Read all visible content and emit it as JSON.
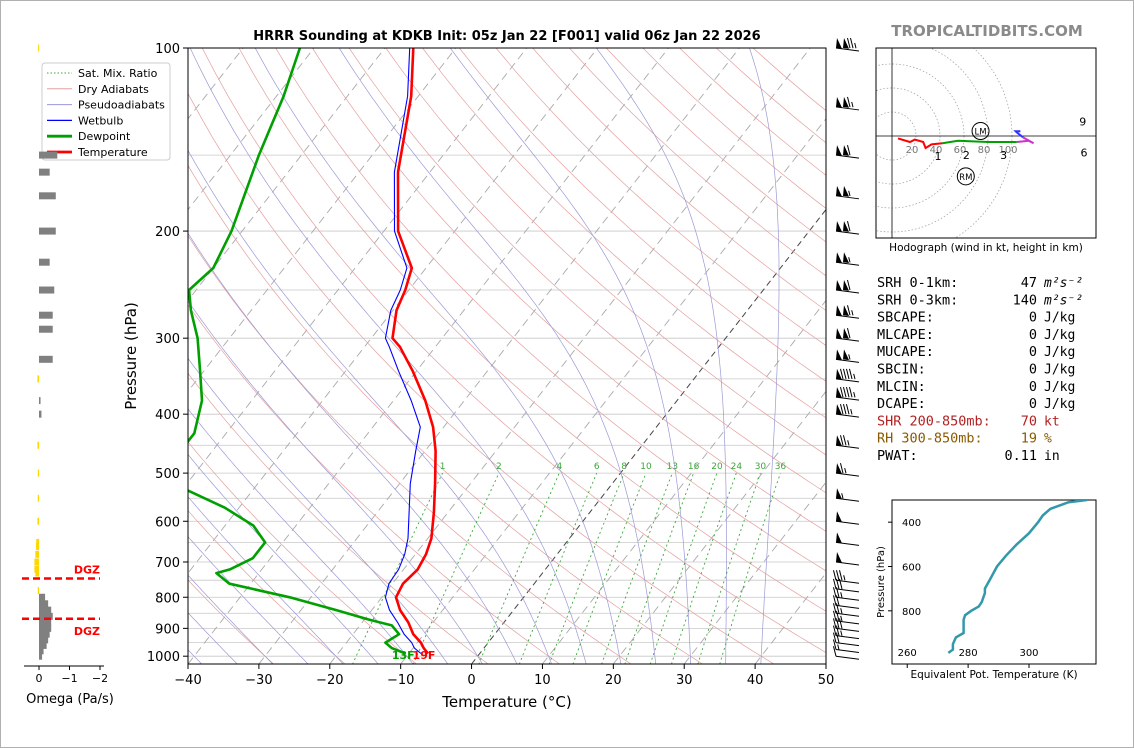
{
  "title": "HRRR Sounding at KDKB Init: 05z Jan 22 [F001] valid 06z Jan 22 2026",
  "brand": "TROPICALTIDBITS.COM",
  "chart_data": [
    {
      "type": "line",
      "name": "skew-t",
      "xlabel": "Temperature (°C)",
      "ylabel": "Pressure (hPa)",
      "xlim": [
        -40,
        50
      ],
      "ylim": [
        1030,
        100
      ],
      "y_scale": "log",
      "skew": "isotherms slanted to the right",
      "x_ticks": [
        -40,
        -30,
        -20,
        -10,
        0,
        10,
        20,
        30,
        40,
        50
      ],
      "y_ticks": [
        100,
        200,
        300,
        400,
        500,
        600,
        700,
        800,
        900,
        1000
      ],
      "legend_position": "top-left",
      "legend": [
        "Sat. Mix. Ratio",
        "Dry Adiabats",
        "Pseudoadiabats",
        "Wetbulb",
        "Dewpoint",
        "Temperature"
      ],
      "mixing_ratio_labels": [
        "1",
        "2",
        "4",
        "6",
        "8",
        "10",
        "13",
        "16",
        "20",
        "24",
        "30",
        "36"
      ],
      "mixing_ratio_values": [
        1,
        2,
        4,
        6,
        8,
        10,
        13,
        16,
        20,
        24,
        30,
        36
      ],
      "series": [
        {
          "name": "Temperature",
          "color": "#ff0000",
          "p": [
            990,
            970,
            950,
            920,
            880,
            840,
            800,
            760,
            720,
            680,
            640,
            580,
            520,
            460,
            420,
            380,
            340,
            310,
            300,
            270,
            250,
            230,
            200,
            160,
            120,
            100
          ],
          "t": [
            -7.3,
            -8.5,
            -9.5,
            -11.5,
            -13.5,
            -16.0,
            -18.0,
            -18.5,
            -18.0,
            -18.5,
            -19.5,
            -22.0,
            -25.0,
            -28.5,
            -31.5,
            -35.5,
            -40.5,
            -45.0,
            -47.0,
            -49.5,
            -50.5,
            -52.0,
            -58.0,
            -64.5,
            -71.0,
            -76.0
          ]
        },
        {
          "name": "Dewpoint",
          "color": "#00a000",
          "p": [
            990,
            970,
            950,
            920,
            890,
            870,
            840,
            800,
            760,
            730,
            720,
            690,
            650,
            610,
            570,
            520,
            500,
            460,
            430,
            380,
            340,
            300,
            270,
            250,
            230,
            200,
            150,
            120,
            100
          ],
          "t": [
            -10.5,
            -13.0,
            -14.5,
            -13.5,
            -15.5,
            -19.5,
            -25.0,
            -33.0,
            -43.0,
            -46.0,
            -44.5,
            -42.5,
            -42.5,
            -46.0,
            -52.0,
            -62.0,
            -63.5,
            -64.5,
            -64.5,
            -67.0,
            -70.5,
            -74.5,
            -78.5,
            -81.0,
            -80.0,
            -81.5,
            -86.0,
            -89.0,
            -92.0
          ]
        },
        {
          "name": "Wetbulb",
          "color": "#0000ff",
          "p": [
            990,
            970,
            950,
            920,
            880,
            840,
            800,
            760,
            720,
            680,
            640,
            580,
            520,
            460,
            420,
            380,
            340,
            310,
            300,
            270,
            250,
            230,
            200,
            160,
            120,
            100
          ],
          "t": [
            -8.3,
            -9.8,
            -10.8,
            -12.8,
            -15.0,
            -17.5,
            -19.5,
            -20.5,
            -20.7,
            -21.5,
            -22.8,
            -25.5,
            -28.5,
            -31.3,
            -33.3,
            -37.5,
            -42.5,
            -46.5,
            -48.0,
            -50.3,
            -51.2,
            -52.7,
            -58.5,
            -65.0,
            -71.5,
            -76.5
          ]
        }
      ],
      "surface_labels": [
        {
          "text": "13F",
          "color": "#00a000"
        },
        {
          "text": "19F",
          "color": "#ff0000"
        }
      ],
      "wind_barb_levels_hpa": [
        100,
        125,
        150,
        175,
        200,
        225,
        250,
        275,
        300,
        325,
        350,
        375,
        400,
        450,
        500,
        550,
        600,
        650,
        700,
        750,
        775,
        800,
        825,
        850,
        875,
        900,
        925,
        950,
        975,
        1000
      ],
      "wind_barb_speeds_kt": [
        125,
        115,
        110,
        105,
        110,
        105,
        110,
        115,
        110,
        105,
        95,
        95,
        85,
        75,
        65,
        55,
        50,
        50,
        50,
        35,
        30,
        25,
        20,
        25,
        25,
        30,
        25,
        20,
        15,
        10
      ]
    },
    {
      "type": "bar",
      "name": "omega",
      "xlabel": "Omega (Pa/s)",
      "x_ticks": [
        "0",
        "−1",
        "−2"
      ],
      "xlim": [
        0.35,
        -2.35
      ],
      "annotations": [
        "DGZ",
        "DGZ"
      ],
      "dgz_levels_hpa": [
        745,
        868
      ],
      "bars_p": [
        100,
        150,
        160,
        175,
        200,
        225,
        250,
        275,
        290,
        325,
        350,
        380,
        400,
        450,
        500,
        550,
        600,
        650,
        660,
        680,
        700,
        720,
        730,
        780,
        800,
        820,
        840,
        860,
        880,
        900,
        920,
        940,
        960,
        980,
        1000
      ],
      "bars_val": [
        0.03,
        -0.6,
        -0.35,
        -0.55,
        -0.55,
        -0.35,
        -0.5,
        -0.45,
        -0.45,
        -0.45,
        0.05,
        -0.05,
        -0.08,
        0.05,
        0.04,
        0.04,
        0.05,
        0.09,
        0.1,
        0.12,
        0.15,
        0.15,
        0.12,
        0.04,
        -0.2,
        -0.3,
        -0.4,
        -0.45,
        -0.4,
        -0.4,
        -0.35,
        -0.3,
        -0.25,
        -0.15,
        -0.1
      ]
    },
    {
      "type": "line",
      "name": "hodograph",
      "xlabel": "Hodograph (wind in kt, height in km)",
      "ring_labels": [
        "20",
        "40",
        "60",
        "80",
        "100"
      ],
      "ring_values": [
        20,
        40,
        60,
        80,
        100
      ],
      "height_labels": [
        "1",
        "2",
        "3",
        "6",
        "9"
      ],
      "markers": [
        "LM",
        "RM"
      ],
      "marker_u": [
        18,
        15
      ],
      "marker_v": [
        1.5,
        -12
      ],
      "segments": [
        {
          "color": "#ff0000",
          "u": [
            5,
            15,
            19,
            26,
            28,
            33,
            42
          ],
          "v": [
            -2,
            -5,
            -3,
            -5,
            -10,
            -7,
            -6
          ]
        },
        {
          "color": "#00a000",
          "u": [
            42,
            55,
            80,
            104
          ],
          "v": [
            -6,
            -4,
            -5,
            -5
          ]
        },
        {
          "color": "#cc33cc",
          "u": [
            104,
            114,
            118,
            109
          ],
          "v": [
            -5,
            -4,
            -6,
            -1
          ]
        },
        {
          "color": "#3333ff",
          "u": [
            109,
            104,
            103,
            107
          ],
          "v": [
            -1,
            3,
            4,
            4
          ]
        }
      ]
    },
    {
      "type": "line",
      "name": "equivalent-potential-temperature",
      "xlabel": "Equivalent Pot. Temperature (K)",
      "ylabel": "Pressure (hPa)",
      "x_ticks": [
        260,
        280,
        300
      ],
      "y_ticks": [
        400,
        600,
        800
      ],
      "xlim": [
        260,
        320
      ],
      "ylim": [
        1000,
        300
      ],
      "p": [
        990,
        975,
        950,
        920,
        900,
        880,
        860,
        840,
        820,
        800,
        780,
        760,
        740,
        720,
        700,
        650,
        600,
        550,
        500,
        450,
        400,
        370,
        340,
        320,
        310,
        300
      ],
      "theta_e": [
        273.5,
        275,
        275,
        276,
        278.5,
        278.5,
        278.5,
        278.5,
        279,
        281,
        283.5,
        284.5,
        285,
        285.5,
        285.5,
        287.5,
        289.5,
        292.5,
        296,
        300,
        303,
        304.5,
        307,
        311,
        313,
        319
      ]
    }
  ],
  "indices": [
    {
      "label": "SRH 0-1km:",
      "value": "47",
      "unit": "m²s⁻²",
      "color": "#000000"
    },
    {
      "label": "SRH 0-3km:",
      "value": "140",
      "unit": "m²s⁻²",
      "color": "#000000"
    },
    {
      "label": "SBCAPE:",
      "value": "0",
      "unit": "J/kg",
      "color": "#000000"
    },
    {
      "label": "MLCAPE:",
      "value": "0",
      "unit": "J/kg",
      "color": "#000000"
    },
    {
      "label": "MUCAPE:",
      "value": "0",
      "unit": "J/kg",
      "color": "#000000"
    },
    {
      "label": "SBCIN:",
      "value": "0",
      "unit": "J/kg",
      "color": "#000000"
    },
    {
      "label": "MLCIN:",
      "value": "0",
      "unit": "J/kg",
      "color": "#000000"
    },
    {
      "label": "DCAPE:",
      "value": "0",
      "unit": "J/kg",
      "color": "#000000"
    },
    {
      "label": "SHR 200-850mb:",
      "value": "70",
      "unit": "kt",
      "color": "#b22222"
    },
    {
      "label": "RH 300-850mb:",
      "value": "19",
      "unit": "%",
      "color": "#8b5a00"
    },
    {
      "label": "PWAT:",
      "value": "0.11",
      "unit": "in",
      "color": "#000000"
    }
  ]
}
